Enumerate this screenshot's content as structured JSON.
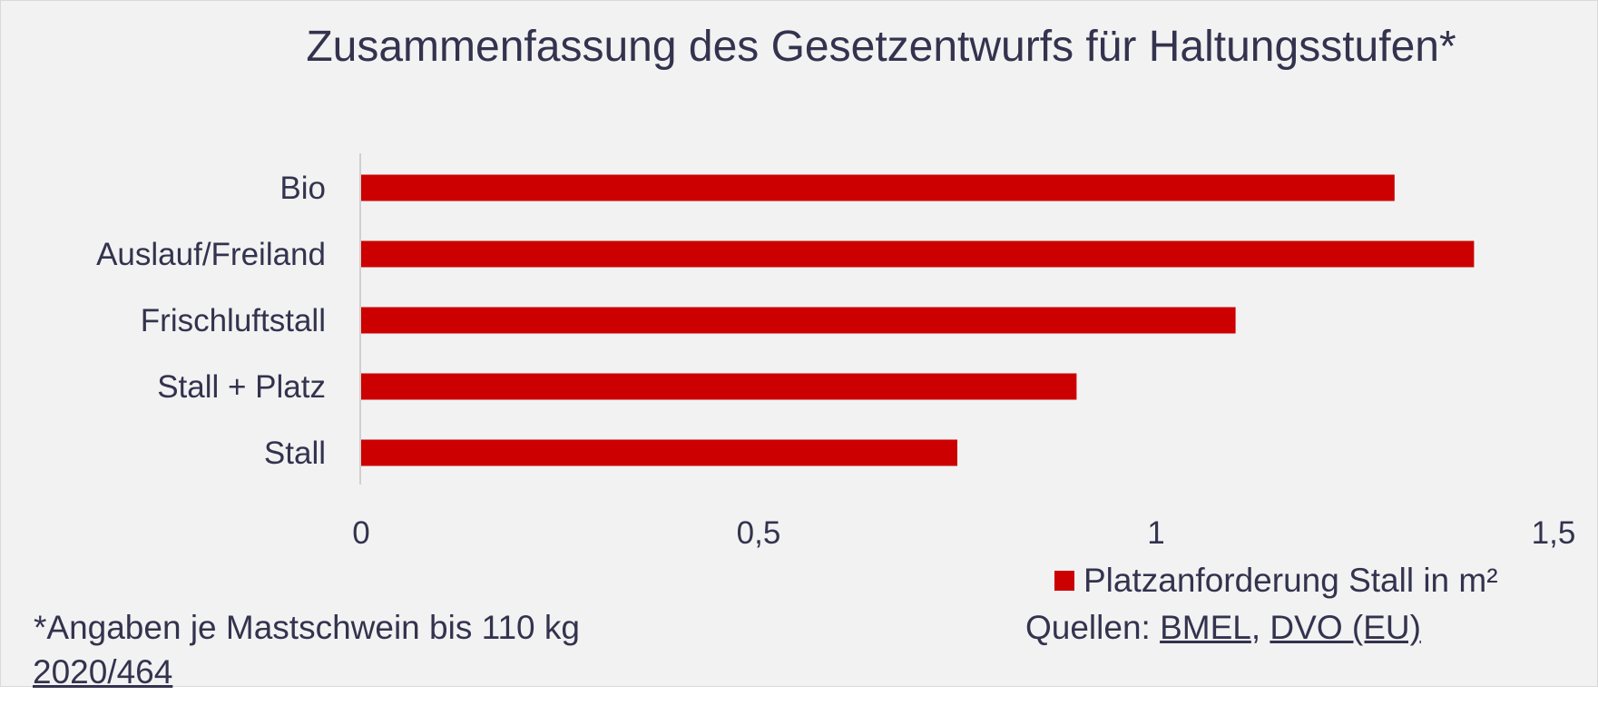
{
  "chart_data": {
    "type": "bar",
    "orientation": "horizontal",
    "title": "Zusammenfassung des Gesetzentwurfs für Haltungsstufen*",
    "categories": [
      "Bio",
      "Auslauf/Freiland",
      "Frischluftstall",
      "Stall + Platz",
      "Stall"
    ],
    "series": [
      {
        "name": "Platzanforderung Stall in m²",
        "values": [
          1.3,
          1.4,
          1.1,
          0.9,
          0.75
        ]
      }
    ],
    "xlim": [
      0,
      1.5
    ],
    "xticks": [
      {
        "value": 0,
        "label": "0"
      },
      {
        "value": 0.5,
        "label": "0,5"
      },
      {
        "value": 1,
        "label": "1"
      },
      {
        "value": 1.5,
        "label": "1,5"
      }
    ],
    "grid": false,
    "legend_position": "bottom-right",
    "bar_color": "#cc0000"
  },
  "footnote": "*Angaben je Mastschwein bis 110 kg",
  "sources": {
    "prefix": "Quellen: ",
    "link1": "BMEL",
    "separator": ", ",
    "link2": "DVO (EU)",
    "link2_cont": "2020/464"
  }
}
